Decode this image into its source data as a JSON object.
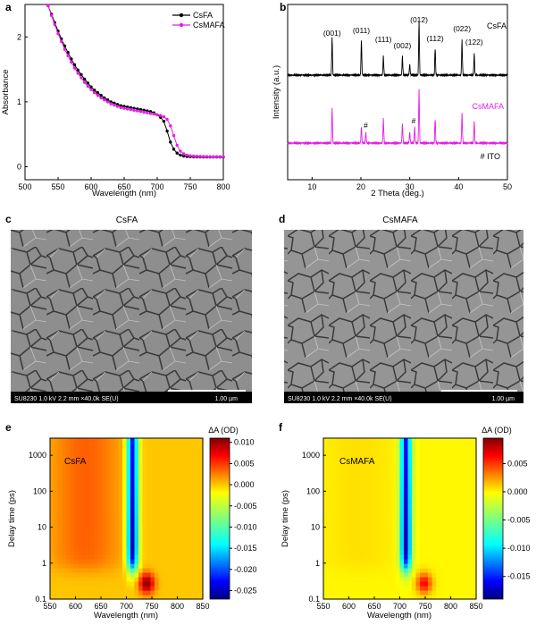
{
  "panels": {
    "a": "a",
    "b": "b",
    "c": "c",
    "d": "d",
    "e": "e",
    "f": "f"
  },
  "chart_data": [
    {
      "id": "a",
      "type": "line",
      "xlabel": "Wavelength (nm)",
      "ylabel": "Absorbance",
      "xlim": [
        500,
        800
      ],
      "ylim": [
        -0.2,
        2.5
      ],
      "xticks": [
        "500",
        "550",
        "600",
        "650",
        "700",
        "750",
        "800"
      ],
      "yticks": [
        "0",
        "1",
        "2"
      ],
      "legend_position": "top-right",
      "series": [
        {
          "name": "CsFA",
          "color": "#000000",
          "x": [
            535,
            540,
            545,
            550,
            555,
            560,
            565,
            570,
            575,
            580,
            585,
            590,
            595,
            600,
            605,
            610,
            615,
            620,
            625,
            630,
            635,
            640,
            645,
            650,
            655,
            660,
            665,
            670,
            675,
            680,
            685,
            690,
            695,
            700,
            705,
            710,
            715,
            720,
            725,
            730,
            735,
            740,
            745,
            750,
            755,
            760,
            765,
            770,
            775,
            780,
            785,
            790,
            795,
            800
          ],
          "y": [
            2.48,
            2.35,
            2.22,
            2.09,
            1.97,
            1.86,
            1.76,
            1.66,
            1.57,
            1.49,
            1.42,
            1.35,
            1.29,
            1.23,
            1.18,
            1.14,
            1.1,
            1.06,
            1.03,
            1.0,
            0.98,
            0.96,
            0.94,
            0.93,
            0.92,
            0.91,
            0.9,
            0.89,
            0.88,
            0.87,
            0.86,
            0.85,
            0.83,
            0.8,
            0.76,
            0.7,
            0.55,
            0.38,
            0.27,
            0.21,
            0.18,
            0.165,
            0.158,
            0.155,
            0.153,
            0.152,
            0.151,
            0.15,
            0.15,
            0.15,
            0.15,
            0.15,
            0.15,
            0.15
          ]
        },
        {
          "name": "CsMAFA",
          "color": "#e61ee6",
          "x": [
            535,
            540,
            545,
            550,
            555,
            560,
            565,
            570,
            575,
            580,
            585,
            590,
            595,
            600,
            605,
            610,
            615,
            620,
            625,
            630,
            635,
            640,
            645,
            650,
            655,
            660,
            665,
            670,
            675,
            680,
            685,
            690,
            695,
            700,
            705,
            710,
            715,
            720,
            725,
            730,
            735,
            740,
            745,
            750,
            755,
            760,
            765,
            770,
            775,
            780,
            785,
            790,
            795,
            800
          ],
          "y": [
            2.48,
            2.33,
            2.19,
            2.05,
            1.93,
            1.81,
            1.71,
            1.61,
            1.52,
            1.44,
            1.37,
            1.3,
            1.24,
            1.19,
            1.14,
            1.1,
            1.06,
            1.03,
            1.0,
            0.97,
            0.95,
            0.93,
            0.91,
            0.9,
            0.89,
            0.88,
            0.87,
            0.86,
            0.85,
            0.84,
            0.83,
            0.82,
            0.81,
            0.8,
            0.79,
            0.77,
            0.73,
            0.63,
            0.48,
            0.33,
            0.24,
            0.2,
            0.18,
            0.17,
            0.165,
            0.162,
            0.16,
            0.158,
            0.157,
            0.156,
            0.155,
            0.155,
            0.155,
            0.155
          ]
        }
      ]
    },
    {
      "id": "b",
      "type": "line",
      "xlabel": "2 Theta (deg.)",
      "ylabel": "Intensity (a.u.)",
      "xlim": [
        5,
        50
      ],
      "xticks": [
        "10",
        "20",
        "30",
        "40",
        "50"
      ],
      "series": [
        {
          "name": "CsFA",
          "color": "#000000",
          "baseline": 0.62,
          "peaks": [
            [
              14.1,
              0.28
            ],
            [
              20.1,
              0.26
            ],
            [
              24.6,
              0.14
            ],
            [
              28.5,
              0.14
            ],
            [
              30.0,
              0.08
            ],
            [
              31.9,
              0.4
            ],
            [
              35.2,
              0.2
            ],
            [
              40.7,
              0.26
            ],
            [
              43.2,
              0.16
            ]
          ]
        },
        {
          "name": "CsMAFA",
          "color": "#e61ee6",
          "baseline": 0.0,
          "peaks": [
            [
              14.1,
              0.26
            ],
            [
              20.1,
              0.12
            ],
            [
              21.0,
              0.08
            ],
            [
              24.6,
              0.18
            ],
            [
              28.5,
              0.14
            ],
            [
              30.0,
              0.08
            ],
            [
              31.0,
              0.12
            ],
            [
              31.9,
              0.4
            ],
            [
              35.2,
              0.18
            ],
            [
              40.7,
              0.22
            ],
            [
              43.2,
              0.16
            ]
          ]
        }
      ],
      "annotations": [
        "(001)",
        "(011)",
        "(111)",
        "(002)",
        "(012)",
        "(112)",
        "(022)",
        "(122)",
        "#",
        "#",
        "# ITO"
      ]
    },
    {
      "id": "e",
      "type": "heatmap",
      "inset_label": "CsFA",
      "xlabel": "Wavelength (nm)",
      "ylabel": "Delay time (ps)",
      "colorbar_label": "ΔA (OD)",
      "xlim": [
        550,
        850
      ],
      "ylim_log": [
        0.1,
        3000
      ],
      "xticks": [
        "550",
        "600",
        "650",
        "700",
        "750",
        "800",
        "850"
      ],
      "yticks": [
        "0.1",
        "1",
        "10",
        "100",
        "1000"
      ],
      "colorbar_ticks": [
        "0.010",
        "0.005",
        "0.000",
        "-0.005",
        "-0.010",
        "-0.015",
        "-0.020",
        "-0.025"
      ],
      "clim": [
        -0.027,
        0.011
      ]
    },
    {
      "id": "f",
      "type": "heatmap",
      "inset_label": "CsMAFA",
      "xlabel": "Wavelength (nm)",
      "ylabel": "Delay time (ps)",
      "colorbar_label": "ΔA (OD)",
      "xlim": [
        550,
        850
      ],
      "ylim_log": [
        0.1,
        3000
      ],
      "xticks": [
        "550",
        "600",
        "650",
        "700",
        "750",
        "800",
        "850"
      ],
      "yticks": [
        "0.1",
        "1",
        "10",
        "100",
        "1000"
      ],
      "colorbar_ticks": [
        "0.005",
        "0.000",
        "-0.005",
        "-0.010",
        "-0.015"
      ],
      "clim": [
        -0.019,
        0.0095
      ]
    }
  ],
  "sem": {
    "c": {
      "title": "CsFA",
      "meta": "SU8230 1.0 kV 2.2 mm ×40.0k SE(U)",
      "scale": "1.00 µm"
    },
    "d": {
      "title": "CsMAFA",
      "meta": "SU8230 1.0 kV 2.2 mm ×40.0k SE(U)",
      "scale": "1.00 µm"
    }
  }
}
